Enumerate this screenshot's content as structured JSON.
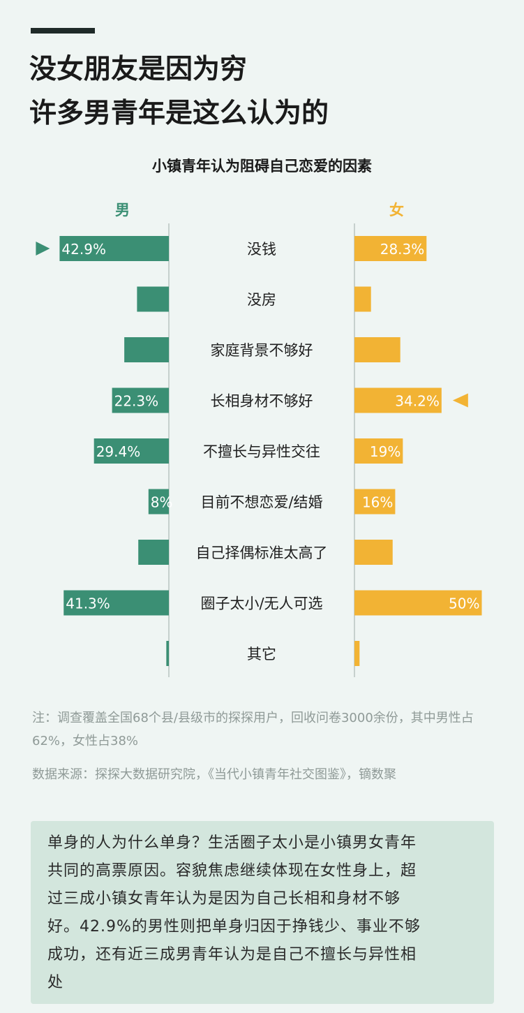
{
  "headline": {
    "line1": "没女朋友是因为穷",
    "line2": "许多男青年是这么认为的"
  },
  "chart_data": {
    "type": "bar",
    "title": "小镇青年认为阻碍自己恋爱的因素",
    "categories": [
      "没钱",
      "没房",
      "家庭背景不够好",
      "长相身材不够好",
      "不擅长与异性交往",
      "目前不想恋爱/结婚",
      "自己择偶标准太高了",
      "圈子太小/无人可选",
      "其它"
    ],
    "series": [
      {
        "name": "男",
        "color": "#3b8f74",
        "values": [
          42.9,
          12.5,
          17.5,
          22.3,
          29.4,
          8,
          12,
          41.3,
          1
        ],
        "labels": [
          "42.9%",
          "",
          "",
          "22.3%",
          "29.4%",
          "8%",
          "",
          "41.3%",
          ""
        ]
      },
      {
        "name": "女",
        "color": "#f2b334",
        "values": [
          28.3,
          6.5,
          18,
          34.2,
          19,
          16,
          15,
          50,
          2
        ],
        "labels": [
          "28.3%",
          "",
          "",
          "34.2%",
          "19%",
          "16%",
          "",
          "50%",
          ""
        ]
      }
    ],
    "highlights": [
      {
        "series": "男",
        "category": "没钱"
      },
      {
        "series": "女",
        "category": "长相身材不够好"
      }
    ],
    "xlim": [
      0,
      50
    ]
  },
  "notes": {
    "note1": "注：调查覆盖全国68个县/县级市的探探用户，回收问卷3000余份，其中男性占62%，女性占38%",
    "note2": "数据来源：探探大数据研究院，《当代小镇青年社交图鉴》，镝数聚"
  },
  "summary": {
    "lines": [
      "单身的人为什么单身？生活圈子太小是小镇男女青年",
      "共同的高票原因。容貌焦虑继续体现在女性身上，超",
      "过三成小镇女青年认为是因为自己长相和身材不够",
      "好。42.9%的男性则把单身归因于挣钱少、事业不够",
      "成功，还有近三成男青年认为是自己不擅长与异性相",
      "处"
    ]
  },
  "colors": {
    "male": "#3b8f74",
    "female": "#f2b334",
    "background": "#eff5f3",
    "summary_bg": "#d3e6dd"
  }
}
